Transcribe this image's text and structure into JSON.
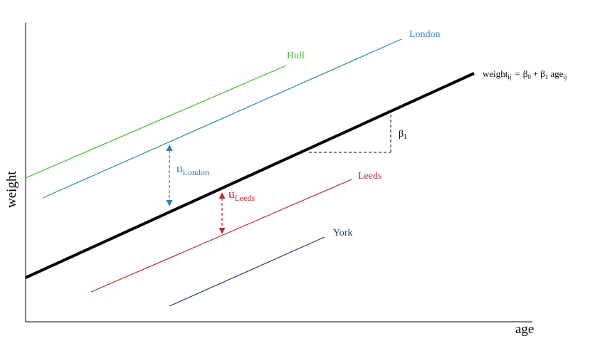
{
  "diagram": {
    "axes": {
      "x_label": "age",
      "y_label": "weight"
    },
    "overall_line": {
      "equation": {
        "lhs": "weight",
        "lhs_sub": "ij",
        "eq": "=",
        "beta0": "β",
        "beta0_sub": "0",
        "plus": "+",
        "beta1": "β",
        "beta1_sub": "1",
        "age": "age",
        "age_sub": "ij"
      },
      "color": "#000000"
    },
    "slope_marker": {
      "symbol": "β",
      "sub": "1"
    },
    "groups": [
      {
        "name": "Hull",
        "color": "#3dbf2e"
      },
      {
        "name": "London",
        "color": "#2f7fbf"
      },
      {
        "name": "Leeds",
        "color": "#c0282d"
      },
      {
        "name": "York",
        "color": "#1f3a73"
      }
    ],
    "random_effects": [
      {
        "symbol": "u",
        "sub": "London",
        "color": "#2f7fbf"
      },
      {
        "symbol": "u",
        "sub": "Leeds",
        "color": "#c0282d"
      }
    ]
  }
}
